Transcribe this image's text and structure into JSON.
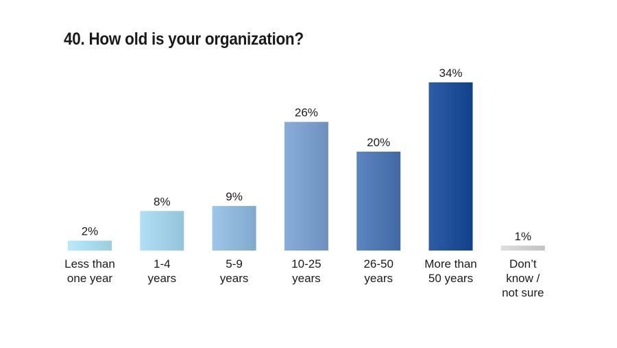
{
  "chart_data": {
    "type": "bar",
    "title": "40. How old is your organization?",
    "categories": [
      [
        "Less than",
        "one year"
      ],
      [
        "1-4",
        "years"
      ],
      [
        "5-9",
        "years"
      ],
      [
        "10-25",
        "years"
      ],
      [
        "26-50",
        "years"
      ],
      [
        "More than",
        "50 years"
      ],
      [
        "Don’t",
        "know /",
        "not sure"
      ]
    ],
    "values": [
      2,
      8,
      9,
      26,
      20,
      34,
      1
    ],
    "value_labels": [
      "2%",
      "8%",
      "9%",
      "26%",
      "20%",
      "34%",
      "1%"
    ],
    "colors": [
      "#a9dcec",
      "#a3d2e8",
      "#8fb7d9",
      "#7b9fcc",
      "#4f77b2",
      "#1f4f98",
      "#d0d0d0"
    ],
    "xlabel": "",
    "ylabel": "",
    "ylim": [
      0,
      34
    ],
    "grid": false,
    "legend": "none"
  }
}
